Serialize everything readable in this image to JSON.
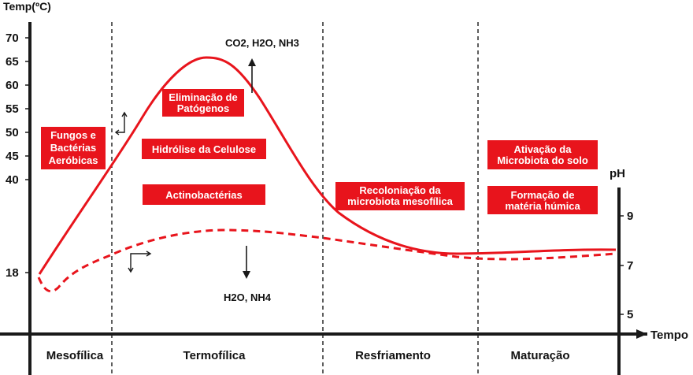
{
  "chart_data": {
    "type": "line",
    "title": "",
    "xlabel": "Tempo",
    "ylabel_left": "Temp(ºC)",
    "ylabel_right": "pH",
    "y_left_ticks": [
      "70",
      "65",
      "60",
      "55",
      "50",
      "45",
      "40",
      "18"
    ],
    "y_right_ticks": [
      "9",
      "7",
      "5"
    ],
    "phases": [
      "Mesofílica",
      "Termofílica",
      "Resfriamento",
      "Maturação"
    ],
    "series": [
      {
        "name": "",
        "style": "solid",
        "color": "#e8141c"
      },
      {
        "name": "",
        "style": "dashed",
        "color": "#e8141c"
      }
    ],
    "grid": false
  },
  "labels": {
    "fungos": [
      "Fungos e",
      "Bactérias",
      "Aeróbicas"
    ],
    "eliminacao": [
      "Eliminação de",
      "Patógenos"
    ],
    "hidrolise": [
      "Hidrólise da Celulose"
    ],
    "actinobacterias": [
      "Actinobactérias"
    ],
    "recoloniacao": [
      "Recoloniação da",
      "microbiota mesofílica"
    ],
    "ativacao": [
      "Ativação da",
      "Microbiota do solo"
    ],
    "formacao": [
      "Formação de",
      "matéria húmica"
    ]
  },
  "annotations": {
    "gases_up": "CO2, H2O, NH3",
    "gases_down": "H2O, NH4"
  },
  "colors": {
    "accent": "#e8141c",
    "axis": "#1a1a1a",
    "box_text": "#ffffff"
  }
}
